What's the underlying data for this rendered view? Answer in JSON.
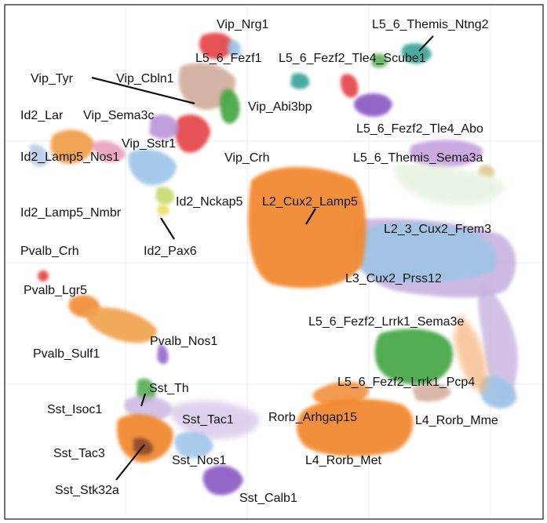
{
  "chart_data": {
    "type": "scatter",
    "title": "",
    "xlabel": "",
    "ylabel": "",
    "grid": true,
    "legend": "none",
    "clusters": [
      {
        "name": "Vip_Nrg1",
        "color": "#e5484d"
      },
      {
        "name": "L5_6_Themis_Ntng2",
        "color": "#2a9d8f"
      },
      {
        "name": "L5_6_Fezf1",
        "color": "#e5484d"
      },
      {
        "name": "L5_6_Fezf2_Tle4_Scube1",
        "color": "#7fb3d5"
      },
      {
        "name": "Vip_Tyr",
        "color": "#e5484d"
      },
      {
        "name": "Vip_Cbln1",
        "color": "#c89a86"
      },
      {
        "name": "Vip_Abi3bp",
        "color": "#4aa84a"
      },
      {
        "name": "Id2_Lamp5_Nos1",
        "color": "#9bc4e8"
      },
      {
        "name": "Id2_Lar",
        "color": "#f0a04b"
      },
      {
        "name": "Vip_Sema3c",
        "color": "#b68ed6"
      },
      {
        "name": "L5_6_Fezf2_Tle4_Abo",
        "color": "#8e5fc6"
      },
      {
        "name": "Vip_Sstr1",
        "color": "#e5484d"
      },
      {
        "name": "Vip_Crh",
        "color": "#e5484d"
      },
      {
        "name": "L5_6_Themis_Sema3a",
        "color": "#c9a5e0"
      },
      {
        "name": "L2_Cux2_Lamp5",
        "color": "#f28a30"
      },
      {
        "name": "Id2_Nckap5",
        "color": "#c8d86b"
      },
      {
        "name": "Id2_Lamp5_Nmbr",
        "color": "#b5c9e6"
      },
      {
        "name": "L2_3_Cux2_Frem3",
        "color": "#9fc4e6"
      },
      {
        "name": "Id2_Pax6",
        "color": "#e8e060"
      },
      {
        "name": "Pvalb_Crh",
        "color": "#e5484d"
      },
      {
        "name": "L3_Cux2_Prss12",
        "color": "#c8b3e0"
      },
      {
        "name": "Pvalb_Lgr5",
        "color": "#f28a30"
      },
      {
        "name": "L5_6_Fezf2_Lrrk1_Sema3e",
        "color": "#4aa84a"
      },
      {
        "name": "Pvalb_Nos1",
        "color": "#8e5fc6"
      },
      {
        "name": "Pvalb_Sulf1",
        "color": "#f0a04b"
      },
      {
        "name": "L5_6_Fezf2_Lrrk1_Pcp4",
        "color": "#f28a30"
      },
      {
        "name": "Sst_Th",
        "color": "#4aa84a"
      },
      {
        "name": "L4_Rorb_Mme",
        "color": "#9fc4e6"
      },
      {
        "name": "Sst_Isoc1",
        "color": "#c8b3e0"
      },
      {
        "name": "Sst_Tac1",
        "color": "#c89a86"
      },
      {
        "name": "Rorb_Arhgap15",
        "color": "#f28a30"
      },
      {
        "name": "Sst_Tac3",
        "color": "#f28a30"
      },
      {
        "name": "L4_Rorb_Met",
        "color": "#f28a30"
      },
      {
        "name": "Sst_Nos1",
        "color": "#9bc4e8"
      },
      {
        "name": "Sst_Stk32a",
        "color": "#8b4a2b"
      },
      {
        "name": "Sst_Calb1",
        "color": "#8e5fc6"
      }
    ]
  }
}
